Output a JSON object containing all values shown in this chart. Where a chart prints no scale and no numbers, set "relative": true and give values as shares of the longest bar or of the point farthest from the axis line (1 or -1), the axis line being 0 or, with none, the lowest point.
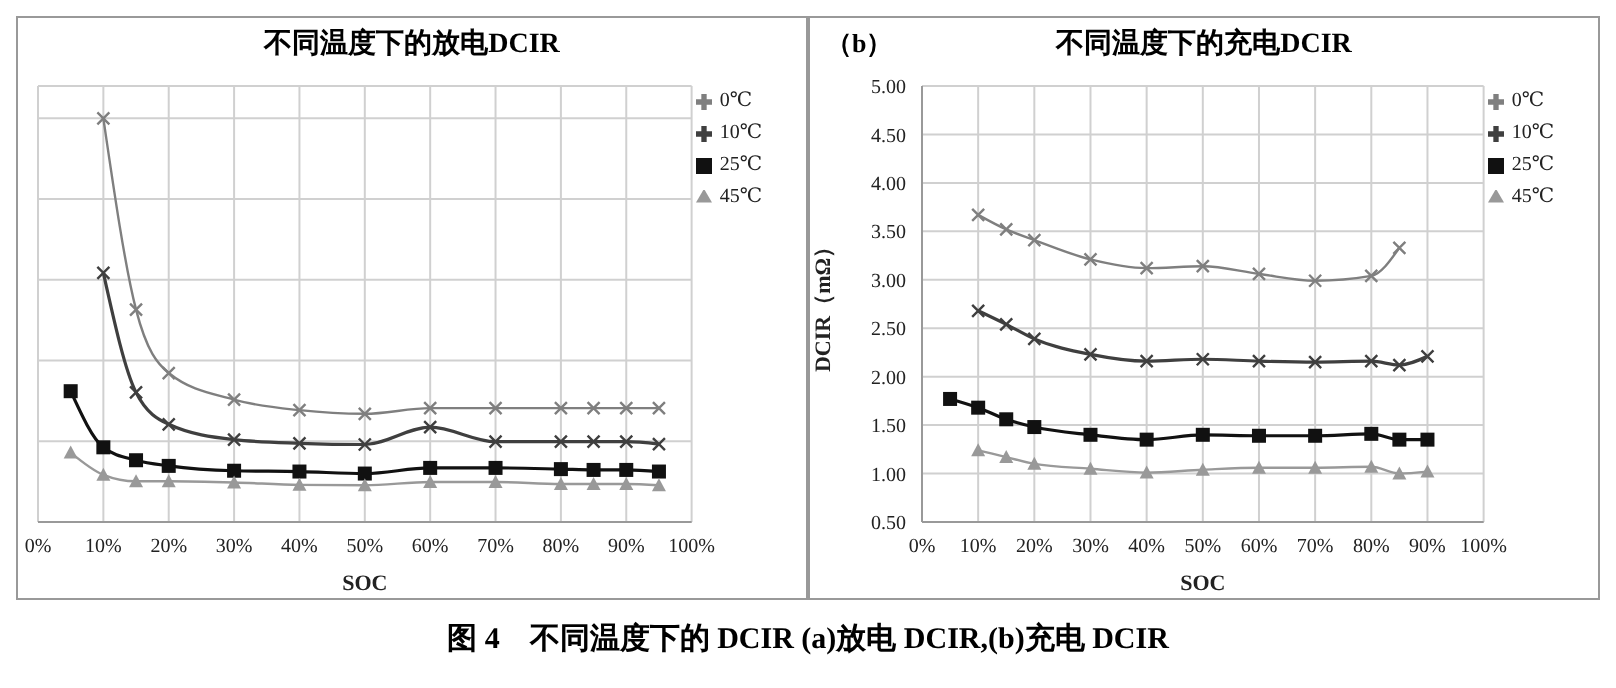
{
  "chart_data": [
    {
      "type": "line",
      "title": "不同温度下的放电DCIR",
      "xlabel": "SOC",
      "relative": true,
      "grid": true,
      "legend": "top right",
      "line_style": "solid",
      "xlim": [
        0,
        100
      ],
      "xticks": [
        {
          "value": 0,
          "label": "0%"
        },
        {
          "value": 10,
          "label": "10%"
        },
        {
          "value": 20,
          "label": "20%"
        },
        {
          "value": 30,
          "label": "30%"
        },
        {
          "value": 40,
          "label": "40%"
        },
        {
          "value": 50,
          "label": "50%"
        },
        {
          "value": 60,
          "label": "60%"
        },
        {
          "value": 70,
          "label": "70%"
        },
        {
          "value": 80,
          "label": "80%"
        },
        {
          "value": 90,
          "label": "90%"
        },
        {
          "value": 100,
          "label": "100%"
        }
      ],
      "series": [
        {
          "name": "0℃",
          "color": "#7f7f7f",
          "marker": "cross",
          "x": [
            10,
            15,
            20,
            30,
            40,
            50,
            60,
            70,
            80,
            85,
            90,
            95
          ],
          "values": [
            1,
            0.526,
            0.369,
            0.303,
            0.277,
            0.268,
            0.282,
            0.282,
            0.282,
            0.282,
            0.282,
            0.282
          ]
        },
        {
          "name": "10℃",
          "color": "#3f3f3f",
          "marker": "cross",
          "x": [
            10,
            15,
            20,
            30,
            40,
            50,
            60,
            70,
            80,
            85,
            90,
            95
          ],
          "values": [
            0.617,
            0.321,
            0.242,
            0.204,
            0.195,
            0.192,
            0.235,
            0.199,
            0.199,
            0.199,
            0.199,
            0.193
          ]
        },
        {
          "name": "25℃",
          "color": "#111111",
          "marker": "square",
          "x": [
            5,
            10,
            15,
            20,
            30,
            40,
            50,
            60,
            70,
            80,
            85,
            90,
            95
          ],
          "values": [
            0.324,
            0.185,
            0.153,
            0.139,
            0.127,
            0.125,
            0.12,
            0.134,
            0.134,
            0.131,
            0.129,
            0.129,
            0.125
          ]
        },
        {
          "name": "45℃",
          "color": "#999999",
          "marker": "triangle",
          "x": [
            5,
            10,
            15,
            20,
            30,
            40,
            50,
            60,
            70,
            80,
            85,
            90,
            95
          ],
          "values": [
            0.172,
            0.117,
            0.101,
            0.101,
            0.098,
            0.092,
            0.091,
            0.099,
            0.099,
            0.094,
            0.094,
            0.094,
            0.091
          ]
        }
      ]
    },
    {
      "type": "line",
      "title": "不同温度下的充电DCIR",
      "xlabel": "SOC",
      "ylabel": "DCIR（mΩ）",
      "grid": true,
      "legend": "top right",
      "line_style": "solid",
      "annotations": [
        "（b）",
        "图 4　不同温度下的 DCIR (a)放电 DCIR,(b)充电 DCIR"
      ],
      "xlim": [
        0,
        100
      ],
      "xticks": [
        {
          "value": 0,
          "label": "0%"
        },
        {
          "value": 10,
          "label": "10%"
        },
        {
          "value": 20,
          "label": "20%"
        },
        {
          "value": 30,
          "label": "30%"
        },
        {
          "value": 40,
          "label": "40%"
        },
        {
          "value": 50,
          "label": "50%"
        },
        {
          "value": 60,
          "label": "60%"
        },
        {
          "value": 70,
          "label": "70%"
        },
        {
          "value": 80,
          "label": "80%"
        },
        {
          "value": 90,
          "label": "90%"
        },
        {
          "value": 100,
          "label": "100%"
        }
      ],
      "ylim": [
        0.5,
        5
      ],
      "yticks": [
        {
          "value": 0.5,
          "label": "0.50"
        },
        {
          "value": 1,
          "label": "1.00"
        },
        {
          "value": 1.5,
          "label": "1.50"
        },
        {
          "value": 2,
          "label": "2.00"
        },
        {
          "value": 2.5,
          "label": "2.50"
        },
        {
          "value": 3,
          "label": "3.00"
        },
        {
          "value": 3.5,
          "label": "3.50"
        },
        {
          "value": 4,
          "label": "4.00"
        },
        {
          "value": 4.5,
          "label": "4.50"
        },
        {
          "value": 5,
          "label": "5.00"
        }
      ],
      "series": [
        {
          "name": "0℃",
          "color": "#7f7f7f",
          "marker": "cross",
          "x": [
            10,
            15,
            20,
            30,
            40,
            50,
            60,
            70,
            80,
            85
          ],
          "values": [
            3.67,
            3.52,
            3.41,
            3.21,
            3.12,
            3.14,
            3.06,
            2.99,
            3.04,
            3.33
          ]
        },
        {
          "name": "10℃",
          "color": "#3f3f3f",
          "marker": "cross",
          "x": [
            10,
            15,
            20,
            30,
            40,
            50,
            60,
            70,
            80,
            85,
            90
          ],
          "values": [
            2.68,
            2.54,
            2.39,
            2.23,
            2.16,
            2.18,
            2.16,
            2.15,
            2.16,
            2.12,
            2.21
          ]
        },
        {
          "name": "25℃",
          "color": "#111111",
          "marker": "square",
          "x": [
            5,
            10,
            15,
            20,
            30,
            40,
            50,
            60,
            70,
            80,
            85,
            90
          ],
          "values": [
            1.77,
            1.68,
            1.56,
            1.48,
            1.4,
            1.35,
            1.4,
            1.39,
            1.39,
            1.41,
            1.35,
            1.35
          ]
        },
        {
          "name": "45℃",
          "color": "#999999",
          "marker": "triangle",
          "x": [
            10,
            15,
            20,
            30,
            40,
            50,
            60,
            70,
            80,
            85,
            90
          ],
          "values": [
            1.24,
            1.17,
            1.1,
            1.05,
            1.01,
            1.04,
            1.06,
            1.06,
            1.07,
            1.0,
            1.02
          ]
        }
      ]
    }
  ]
}
